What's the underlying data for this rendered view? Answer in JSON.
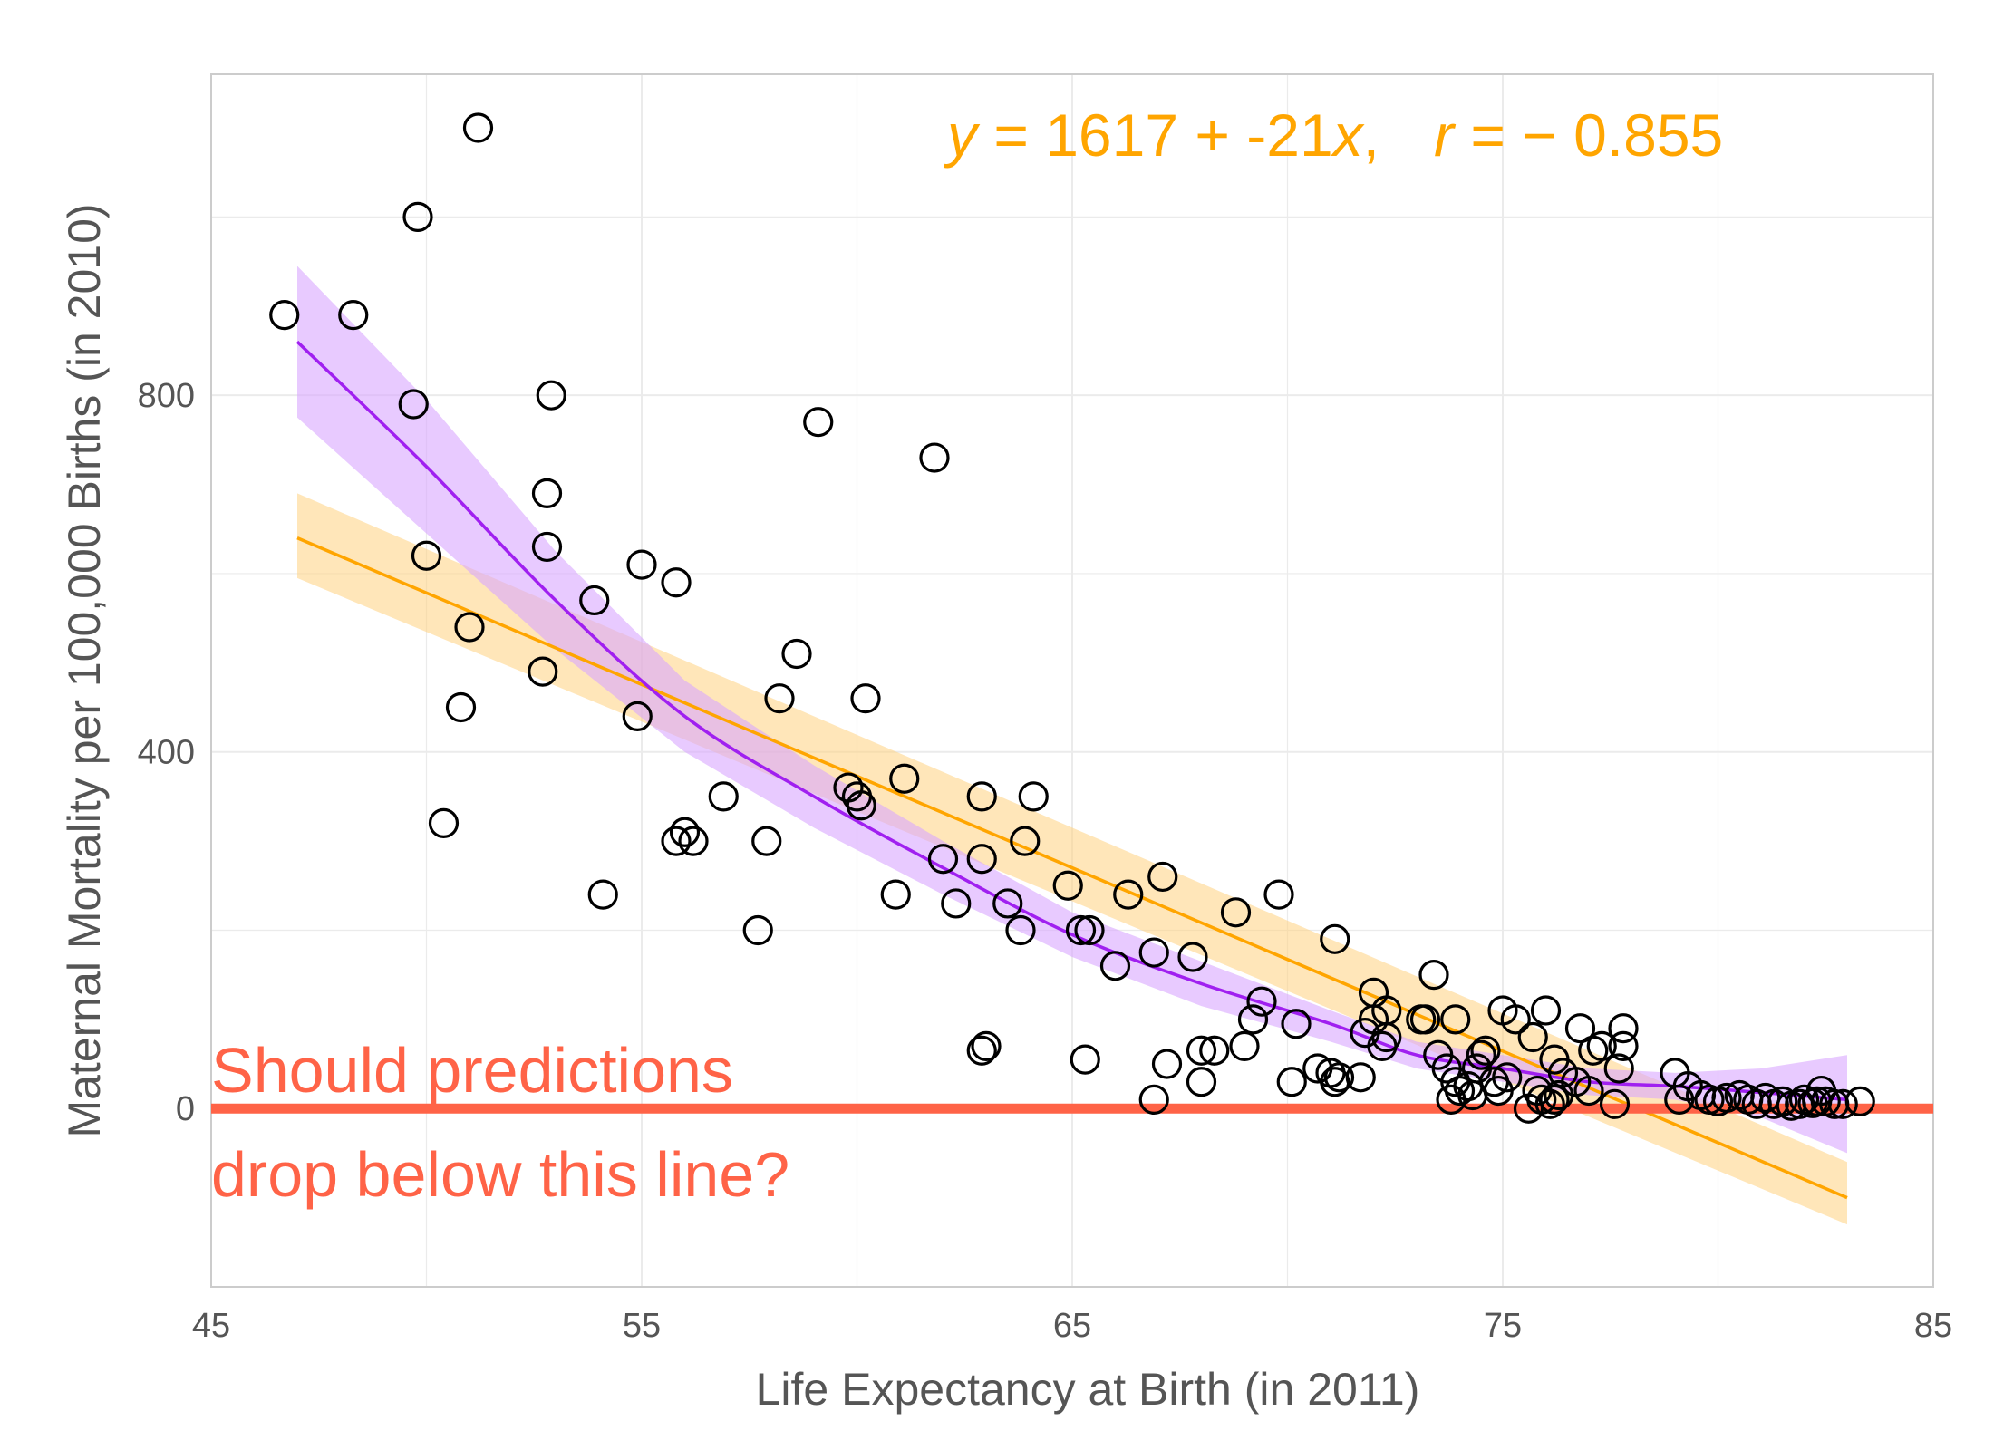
{
  "chart_data": {
    "type": "scatter",
    "xlabel": "Life Expectancy at Birth (in 2011)",
    "ylabel": "Maternal Mortality per 100,000 Births (in 2010)",
    "xlim": [
      45,
      85
    ],
    "ylim": [
      -200,
      1160
    ],
    "x_ticks": [
      45,
      55,
      65,
      75,
      85
    ],
    "y_ticks": [
      0,
      400,
      800
    ],
    "grid": true,
    "equation": {
      "y_var": "y",
      "y_eq": " = 1617 + -21",
      "x_var": "x",
      "sep": ",",
      "r_var": "r",
      "r_eq": " = − 0.855"
    },
    "annotation": {
      "line1": "Should predictions",
      "line2": "drop below this line?"
    },
    "reference_line": {
      "y": 0,
      "color": "#FF6347"
    },
    "colors": {
      "points": "#000000",
      "linear_fit": "#FFA500",
      "linear_band": "#FFD27F",
      "loess_fit": "#A020F0",
      "loess_band": "#D9A6FF",
      "grid": "#EBEBEB",
      "border": "#CCCCCC"
    },
    "linear_fit": {
      "x": [
        47,
        83
      ],
      "y": [
        640,
        -100
      ],
      "band_upper": [
        690,
        -60
      ],
      "band_lower": [
        595,
        -130
      ]
    },
    "loess_fit": {
      "x": [
        47,
        50,
        53,
        56,
        59,
        62,
        65,
        68,
        71,
        73,
        75,
        77,
        79,
        81,
        83
      ],
      "y": [
        860,
        720,
        570,
        440,
        350,
        270,
        195,
        140,
        95,
        60,
        45,
        30,
        25,
        18,
        10
      ],
      "band_upper": [
        945,
        795,
        625,
        480,
        385,
        300,
        220,
        165,
        110,
        75,
        60,
        45,
        40,
        45,
        60
      ],
      "band_lower": [
        775,
        645,
        515,
        400,
        315,
        240,
        170,
        115,
        75,
        45,
        30,
        15,
        10,
        -10,
        -50
      ]
    },
    "points": [
      {
        "x": 46.7,
        "y": 890
      },
      {
        "x": 48.3,
        "y": 890
      },
      {
        "x": 49.8,
        "y": 1000
      },
      {
        "x": 51.2,
        "y": 1100
      },
      {
        "x": 49.7,
        "y": 790
      },
      {
        "x": 52.9,
        "y": 800
      },
      {
        "x": 52.8,
        "y": 690
      },
      {
        "x": 52.8,
        "y": 630
      },
      {
        "x": 50.0,
        "y": 620
      },
      {
        "x": 51.0,
        "y": 540
      },
      {
        "x": 52.7,
        "y": 490
      },
      {
        "x": 50.8,
        "y": 450
      },
      {
        "x": 50.4,
        "y": 320
      },
      {
        "x": 53.9,
        "y": 570
      },
      {
        "x": 55.0,
        "y": 610
      },
      {
        "x": 55.8,
        "y": 590
      },
      {
        "x": 54.9,
        "y": 440
      },
      {
        "x": 54.1,
        "y": 240
      },
      {
        "x": 55.8,
        "y": 300
      },
      {
        "x": 56.0,
        "y": 310
      },
      {
        "x": 56.2,
        "y": 300
      },
      {
        "x": 56.9,
        "y": 350
      },
      {
        "x": 57.7,
        "y": 200
      },
      {
        "x": 57.9,
        "y": 300
      },
      {
        "x": 58.2,
        "y": 460
      },
      {
        "x": 58.6,
        "y": 510
      },
      {
        "x": 59.1,
        "y": 770
      },
      {
        "x": 59.8,
        "y": 360
      },
      {
        "x": 60.0,
        "y": 350
      },
      {
        "x": 60.1,
        "y": 340
      },
      {
        "x": 60.2,
        "y": 460
      },
      {
        "x": 60.9,
        "y": 240
      },
      {
        "x": 61.1,
        "y": 370
      },
      {
        "x": 61.8,
        "y": 730
      },
      {
        "x": 62.0,
        "y": 280
      },
      {
        "x": 62.3,
        "y": 230
      },
      {
        "x": 62.9,
        "y": 350
      },
      {
        "x": 62.9,
        "y": 280
      },
      {
        "x": 62.9,
        "y": 65
      },
      {
        "x": 63.0,
        "y": 70
      },
      {
        "x": 63.5,
        "y": 230
      },
      {
        "x": 63.8,
        "y": 200
      },
      {
        "x": 63.9,
        "y": 300
      },
      {
        "x": 64.1,
        "y": 350
      },
      {
        "x": 64.9,
        "y": 250
      },
      {
        "x": 65.2,
        "y": 200
      },
      {
        "x": 65.3,
        "y": 55
      },
      {
        "x": 65.4,
        "y": 200
      },
      {
        "x": 66.0,
        "y": 160
      },
      {
        "x": 66.3,
        "y": 240
      },
      {
        "x": 66.9,
        "y": 175
      },
      {
        "x": 67.1,
        "y": 260
      },
      {
        "x": 66.9,
        "y": 10
      },
      {
        "x": 67.2,
        "y": 50
      },
      {
        "x": 67.8,
        "y": 170
      },
      {
        "x": 68.0,
        "y": 65
      },
      {
        "x": 68.0,
        "y": 30
      },
      {
        "x": 68.3,
        "y": 65
      },
      {
        "x": 68.8,
        "y": 220
      },
      {
        "x": 69.0,
        "y": 70
      },
      {
        "x": 69.2,
        "y": 100
      },
      {
        "x": 69.4,
        "y": 120
      },
      {
        "x": 69.8,
        "y": 240
      },
      {
        "x": 70.2,
        "y": 95
      },
      {
        "x": 70.1,
        "y": 30
      },
      {
        "x": 70.7,
        "y": 45
      },
      {
        "x": 71.0,
        "y": 40
      },
      {
        "x": 71.1,
        "y": 30
      },
      {
        "x": 71.1,
        "y": 190
      },
      {
        "x": 71.2,
        "y": 35
      },
      {
        "x": 71.7,
        "y": 35
      },
      {
        "x": 71.8,
        "y": 85
      },
      {
        "x": 72.0,
        "y": 130
      },
      {
        "x": 72.0,
        "y": 100
      },
      {
        "x": 72.2,
        "y": 70
      },
      {
        "x": 72.3,
        "y": 110
      },
      {
        "x": 72.3,
        "y": 80
      },
      {
        "x": 73.1,
        "y": 100
      },
      {
        "x": 73.2,
        "y": 100
      },
      {
        "x": 73.4,
        "y": 150
      },
      {
        "x": 73.5,
        "y": 60
      },
      {
        "x": 73.7,
        "y": 45
      },
      {
        "x": 73.9,
        "y": 100
      },
      {
        "x": 73.8,
        "y": 10
      },
      {
        "x": 73.9,
        "y": 30
      },
      {
        "x": 74.0,
        "y": 20
      },
      {
        "x": 74.2,
        "y": 25
      },
      {
        "x": 74.3,
        "y": 15
      },
      {
        "x": 74.4,
        "y": 45
      },
      {
        "x": 74.5,
        "y": 60
      },
      {
        "x": 74.6,
        "y": 65
      },
      {
        "x": 74.8,
        "y": 30
      },
      {
        "x": 74.9,
        "y": 20
      },
      {
        "x": 75.0,
        "y": 110
      },
      {
        "x": 75.1,
        "y": 35
      },
      {
        "x": 75.3,
        "y": 100
      },
      {
        "x": 75.6,
        "y": 0
      },
      {
        "x": 75.7,
        "y": 80
      },
      {
        "x": 75.8,
        "y": 20
      },
      {
        "x": 75.9,
        "y": 10
      },
      {
        "x": 76.0,
        "y": 110
      },
      {
        "x": 76.1,
        "y": 5
      },
      {
        "x": 76.2,
        "y": 10
      },
      {
        "x": 76.2,
        "y": 55
      },
      {
        "x": 76.3,
        "y": 15
      },
      {
        "x": 76.4,
        "y": 40
      },
      {
        "x": 76.7,
        "y": 30
      },
      {
        "x": 76.8,
        "y": 90
      },
      {
        "x": 77.0,
        "y": 20
      },
      {
        "x": 77.1,
        "y": 65
      },
      {
        "x": 77.3,
        "y": 70
      },
      {
        "x": 77.6,
        "y": 5
      },
      {
        "x": 77.7,
        "y": 45
      },
      {
        "x": 77.8,
        "y": 70
      },
      {
        "x": 77.8,
        "y": 90
      },
      {
        "x": 79.0,
        "y": 40
      },
      {
        "x": 79.1,
        "y": 10
      },
      {
        "x": 79.3,
        "y": 25
      },
      {
        "x": 79.6,
        "y": 15
      },
      {
        "x": 79.8,
        "y": 10
      },
      {
        "x": 80.0,
        "y": 8
      },
      {
        "x": 80.2,
        "y": 12
      },
      {
        "x": 80.5,
        "y": 15
      },
      {
        "x": 80.7,
        "y": 10
      },
      {
        "x": 80.9,
        "y": 5
      },
      {
        "x": 81.1,
        "y": 12
      },
      {
        "x": 81.3,
        "y": 5
      },
      {
        "x": 81.5,
        "y": 8
      },
      {
        "x": 81.7,
        "y": 3
      },
      {
        "x": 81.9,
        "y": 5
      },
      {
        "x": 82.0,
        "y": 10
      },
      {
        "x": 82.2,
        "y": 6
      },
      {
        "x": 82.3,
        "y": 8
      },
      {
        "x": 82.4,
        "y": 20
      },
      {
        "x": 82.5,
        "y": 8
      },
      {
        "x": 82.7,
        "y": 5
      },
      {
        "x": 82.9,
        "y": 5
      },
      {
        "x": 83.3,
        "y": 8
      }
    ]
  }
}
